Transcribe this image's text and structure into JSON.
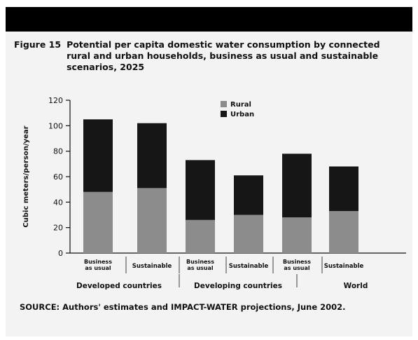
{
  "figure": {
    "label": "Figure 15",
    "title": "Potential per capita domestic water consumption by connected rural and urban households, business as usual and sustainable scenarios, 2025",
    "source": "SOURCE: Authors' estimates and IMPACT-WATER projections, June 2002."
  },
  "chart_data": {
    "type": "bar",
    "stacked": true,
    "ylabel": "Cubic meters/person/year",
    "ylim": [
      0,
      120
    ],
    "yticks": [
      0,
      20,
      40,
      60,
      80,
      100,
      120
    ],
    "categories": [
      [
        "Business",
        "as usual"
      ],
      [
        "Sustainable"
      ],
      [
        "Business",
        "as usual"
      ],
      [
        "Sustainable"
      ],
      [
        "Business",
        "as usual"
      ],
      [
        "Sustainable"
      ]
    ],
    "groups": [
      "Developed countries",
      "Developing countries",
      "World"
    ],
    "series": [
      {
        "name": "Rural",
        "color": "#8c8c8c",
        "values": [
          48,
          51,
          26,
          30,
          28,
          33
        ]
      },
      {
        "name": "Urban",
        "color": "#161616",
        "values": [
          57,
          51,
          47,
          31,
          50,
          35
        ]
      }
    ],
    "legend_position": "top-center",
    "grid": false
  }
}
